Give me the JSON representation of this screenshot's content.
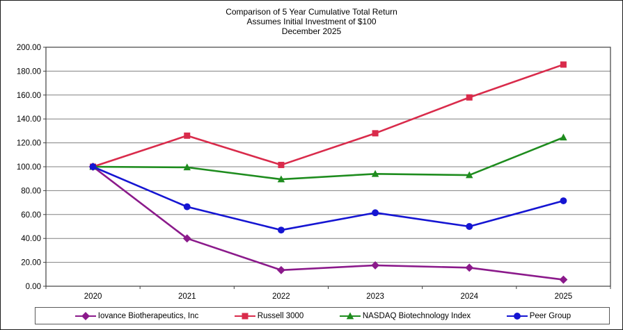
{
  "chart": {
    "title_lines": [
      "Comparison of 5 Year Cumulative Total Return",
      "Assumes Initial Investment of $100",
      "December 2025"
    ]
  },
  "chart_data": {
    "type": "line",
    "title": "Comparison of 5 Year Cumulative Total Return",
    "subtitle": "Assumes Initial Investment of $100",
    "date_label": "December 2025",
    "categories": [
      "2020",
      "2021",
      "2022",
      "2023",
      "2024",
      "2025"
    ],
    "series": [
      {
        "name": "Iovance Biotherapeutics, Inc",
        "color": "#8B1A8B",
        "marker": "diamond",
        "values": [
          100.0,
          40.0,
          13.5,
          17.5,
          15.5,
          5.5
        ]
      },
      {
        "name": "Russell 3000",
        "color": "#D92B4B",
        "marker": "square",
        "values": [
          100.0,
          126.0,
          101.5,
          128.0,
          158.0,
          185.5
        ]
      },
      {
        "name": "NASDAQ Biotechnology Index",
        "color": "#1E8C1E",
        "marker": "triangle",
        "values": [
          100.0,
          99.5,
          89.5,
          94.0,
          93.0,
          124.5
        ]
      },
      {
        "name": "Peer Group",
        "color": "#1515D2",
        "marker": "circle",
        "values": [
          100.0,
          66.5,
          47.0,
          61.5,
          50.0,
          71.5
        ]
      }
    ],
    "ylim": [
      0,
      200
    ],
    "ytick_step": 20,
    "ytick_format": "0.00",
    "grid": true,
    "gridline_color": "#808080",
    "axis_color": "#404040",
    "legend_position": "bottom"
  }
}
